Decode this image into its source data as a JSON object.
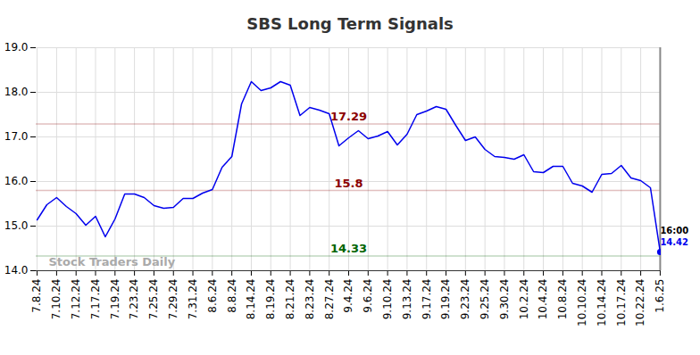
{
  "chart_data": {
    "type": "line",
    "title": "SBS Long Term Signals",
    "categories": [
      "7.8.24",
      null,
      "7.10.24",
      null,
      "7.12.24",
      null,
      "7.17.24",
      null,
      "7.19.24",
      null,
      "7.23.24",
      null,
      "7.25.24",
      null,
      "7.29.24",
      null,
      "7.31.24",
      null,
      "8.6.24",
      null,
      "8.8.24",
      null,
      "8.14.24",
      null,
      "8.19.24",
      null,
      "8.21.24",
      null,
      "8.23.24",
      null,
      "8.27.24",
      null,
      "9.4.24",
      null,
      "9.6.24",
      null,
      "9.10.24",
      null,
      "9.13.24",
      null,
      "9.17.24",
      null,
      "9.19.24",
      null,
      "9.23.24",
      null,
      "9.25.24",
      null,
      "9.30.24",
      null,
      "10.2.24",
      null,
      "10.4.24",
      null,
      "10.8.24",
      null,
      "10.10.24",
      null,
      "10.14.24",
      null,
      "10.17.24",
      null,
      "10.22.24",
      null,
      "1.6.25"
    ],
    "values": [
      15.14,
      15.48,
      15.64,
      15.44,
      15.28,
      15.02,
      15.22,
      14.76,
      15.16,
      15.72,
      15.72,
      15.64,
      15.46,
      15.4,
      15.42,
      15.62,
      15.62,
      15.74,
      15.82,
      16.32,
      16.56,
      17.74,
      18.24,
      18.04,
      18.1,
      18.24,
      18.16,
      17.48,
      17.66,
      17.6,
      17.52,
      16.8,
      16.98,
      17.14,
      16.96,
      17.02,
      17.12,
      16.82,
      17.06,
      17.5,
      17.58,
      17.68,
      17.62,
      17.26,
      16.92,
      17.0,
      16.72,
      16.56,
      16.54,
      16.5,
      16.6,
      16.22,
      16.2,
      16.34,
      16.34,
      15.96,
      15.9,
      15.76,
      16.16,
      16.18,
      16.36,
      16.08,
      16.02,
      15.86,
      14.42
    ],
    "color": "#0000ee",
    "ylim": [
      14,
      19
    ],
    "yticks": [
      14,
      15,
      16,
      17,
      18,
      19
    ],
    "grid": true,
    "levels": [
      {
        "value": 17.29,
        "color": "#8b0000"
      },
      {
        "value": 15.8,
        "color": "#8b0000"
      },
      {
        "value": 14.33,
        "color": "#006400"
      }
    ],
    "end_label": {
      "text": "16:00",
      "value": 14.42
    },
    "watermark": "Stock Traders Daily"
  }
}
